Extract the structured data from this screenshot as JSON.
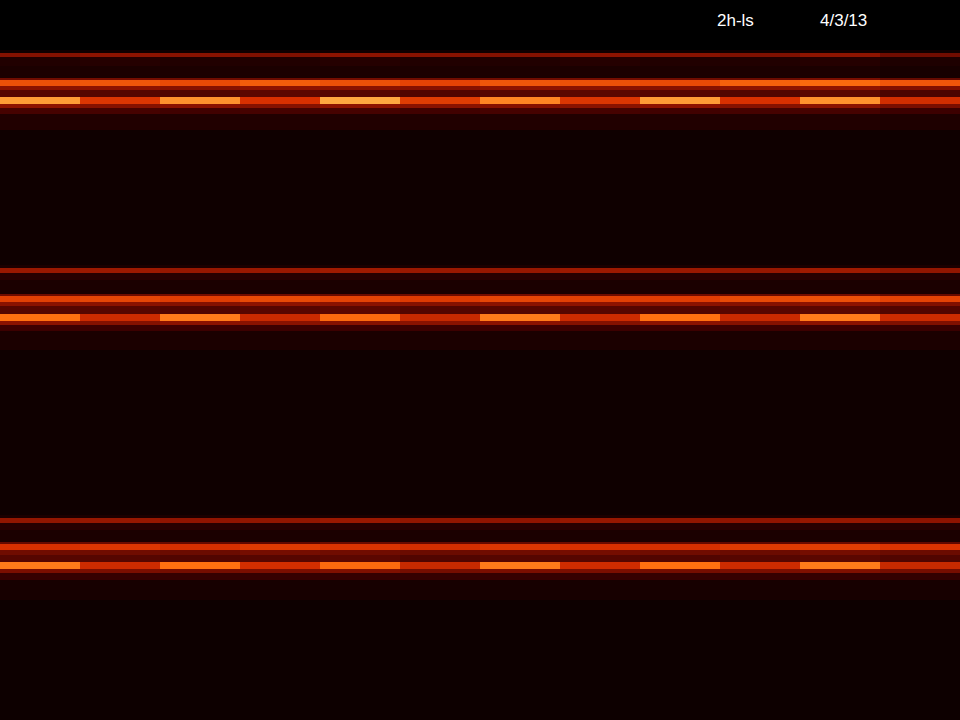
{
  "chart_data": {
    "type": "heatmap",
    "annotations": [
      "2h-ls",
      "4/3/13"
    ],
    "tick_labels": false,
    "zlim": [
      0,
      100
    ],
    "x": [
      0,
      80,
      160,
      240,
      320,
      400,
      480,
      560,
      640,
      720,
      800,
      880,
      960
    ],
    "y": [
      0,
      50,
      53,
      57,
      66,
      78,
      80,
      86,
      90,
      97,
      104,
      108,
      114,
      130,
      265,
      268,
      273,
      280,
      294,
      296,
      302,
      306,
      314,
      321,
      325,
      331,
      350,
      515,
      518,
      523,
      530,
      542,
      544,
      550,
      555,
      562,
      569,
      573,
      580,
      600,
      720
    ],
    "z": [
      [
        0,
        0,
        0,
        0,
        0,
        0,
        0,
        0,
        0,
        0,
        0,
        0
      ],
      [
        6,
        6,
        6,
        6,
        6,
        6,
        6,
        6,
        6,
        6,
        6,
        6
      ],
      [
        34,
        36,
        35,
        33,
        36,
        35,
        34,
        36,
        35,
        33,
        37,
        30
      ],
      [
        12,
        13,
        12,
        12,
        13,
        12,
        12,
        13,
        12,
        12,
        13,
        11
      ],
      [
        10,
        10,
        10,
        10,
        10,
        10,
        10,
        10,
        10,
        10,
        10,
        9
      ],
      [
        30,
        31,
        30,
        29,
        31,
        30,
        30,
        31,
        30,
        29,
        32,
        28
      ],
      [
        70,
        72,
        68,
        74,
        70,
        66,
        72,
        70,
        68,
        75,
        78,
        72
      ],
      [
        35,
        36,
        34,
        36,
        35,
        34,
        36,
        35,
        34,
        36,
        37,
        33
      ],
      [
        25,
        25,
        24,
        26,
        25,
        24,
        25,
        26,
        25,
        24,
        26,
        23
      ],
      [
        88,
        62,
        86,
        60,
        90,
        64,
        84,
        62,
        88,
        60,
        86,
        58
      ],
      [
        36,
        34,
        35,
        34,
        36,
        35,
        34,
        35,
        36,
        34,
        35,
        32
      ],
      [
        22,
        22,
        21,
        22,
        22,
        21,
        22,
        22,
        21,
        22,
        22,
        20
      ],
      [
        12,
        12,
        12,
        12,
        12,
        12,
        12,
        12,
        12,
        12,
        12,
        11
      ],
      [
        6,
        6,
        6,
        6,
        6,
        6,
        6,
        6,
        6,
        6,
        6,
        6
      ],
      [
        10,
        10,
        10,
        10,
        10,
        10,
        10,
        10,
        10,
        10,
        10,
        10
      ],
      [
        40,
        41,
        39,
        40,
        42,
        40,
        39,
        41,
        40,
        39,
        42,
        38
      ],
      [
        14,
        14,
        14,
        14,
        14,
        14,
        14,
        14,
        14,
        14,
        14,
        13
      ],
      [
        10,
        10,
        10,
        10,
        10,
        10,
        10,
        10,
        10,
        10,
        10,
        10
      ],
      [
        30,
        30,
        31,
        30,
        29,
        30,
        31,
        30,
        30,
        29,
        31,
        28
      ],
      [
        65,
        67,
        64,
        68,
        66,
        63,
        67,
        65,
        64,
        68,
        70,
        66
      ],
      [
        35,
        35,
        34,
        36,
        35,
        34,
        35,
        36,
        35,
        34,
        36,
        33
      ],
      [
        25,
        25,
        24,
        25,
        26,
        24,
        25,
        25,
        24,
        25,
        26,
        24
      ],
      [
        80,
        56,
        82,
        55,
        78,
        54,
        82,
        56,
        80,
        55,
        82,
        56
      ],
      [
        35,
        34,
        35,
        35,
        34,
        35,
        35,
        34,
        35,
        34,
        35,
        33
      ],
      [
        20,
        20,
        20,
        20,
        20,
        20,
        20,
        20,
        20,
        20,
        20,
        19
      ],
      [
        10,
        10,
        10,
        10,
        10,
        10,
        10,
        10,
        10,
        10,
        10,
        10
      ],
      [
        6,
        6,
        6,
        6,
        6,
        6,
        6,
        6,
        6,
        6,
        6,
        6
      ],
      [
        10,
        10,
        10,
        10,
        10,
        10,
        10,
        10,
        10,
        10,
        10,
        10
      ],
      [
        38,
        39,
        37,
        38,
        40,
        38,
        37,
        39,
        38,
        37,
        39,
        36
      ],
      [
        14,
        14,
        14,
        14,
        14,
        14,
        14,
        14,
        14,
        14,
        14,
        13
      ],
      [
        10,
        10,
        10,
        10,
        10,
        10,
        10,
        10,
        10,
        10,
        10,
        10
      ],
      [
        28,
        29,
        28,
        27,
        29,
        28,
        28,
        29,
        28,
        27,
        29,
        27
      ],
      [
        60,
        62,
        59,
        63,
        61,
        58,
        62,
        60,
        59,
        63,
        64,
        61
      ],
      [
        30,
        30,
        29,
        31,
        30,
        29,
        30,
        31,
        30,
        29,
        31,
        29
      ],
      [
        25,
        25,
        24,
        25,
        26,
        24,
        25,
        25,
        24,
        25,
        26,
        24
      ],
      [
        82,
        56,
        80,
        58,
        78,
        55,
        82,
        57,
        80,
        56,
        82,
        55
      ],
      [
        32,
        32,
        31,
        32,
        33,
        31,
        32,
        32,
        31,
        32,
        33,
        31
      ],
      [
        18,
        18,
        18,
        18,
        18,
        18,
        18,
        18,
        18,
        18,
        18,
        17
      ],
      [
        9,
        9,
        9,
        9,
        9,
        9,
        9,
        9,
        9,
        9,
        9,
        9
      ],
      [
        5,
        5,
        5,
        5,
        5,
        5,
        5,
        5,
        5,
        5,
        5,
        5
      ]
    ]
  }
}
